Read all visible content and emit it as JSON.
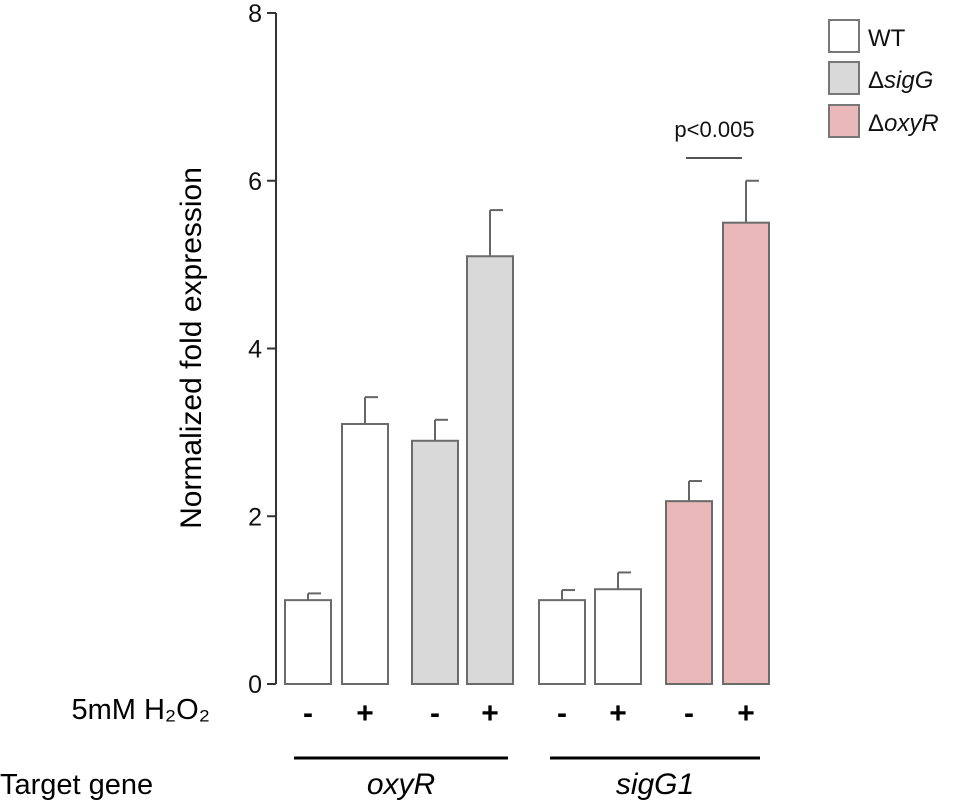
{
  "chart_data": {
    "type": "bar",
    "ylabel": "Normalized fold expression",
    "ylim": [
      0,
      8
    ],
    "yticks": [
      0,
      2,
      4,
      6,
      8
    ],
    "treatment_label": "5mM H₂O₂",
    "target_label": "Target gene",
    "bars": [
      {
        "strain": "WT",
        "treatment": "-",
        "gene": "oxyR",
        "value": 1.0,
        "error": 0.08
      },
      {
        "strain": "WT",
        "treatment": "+",
        "gene": "oxyR",
        "value": 3.1,
        "error": 0.32
      },
      {
        "strain": "ΔsigG",
        "treatment": "-",
        "gene": "oxyR",
        "value": 2.9,
        "error": 0.25
      },
      {
        "strain": "ΔsigG",
        "treatment": "+",
        "gene": "oxyR",
        "value": 5.1,
        "error": 0.55
      },
      {
        "strain": "WT",
        "treatment": "-",
        "gene": "sigG1",
        "value": 1.0,
        "error": 0.12
      },
      {
        "strain": "WT",
        "treatment": "+",
        "gene": "sigG1",
        "value": 1.13,
        "error": 0.2
      },
      {
        "strain": "ΔoxyR",
        "treatment": "-",
        "gene": "sigG1",
        "value": 2.18,
        "error": 0.24
      },
      {
        "strain": "ΔoxyR",
        "treatment": "+",
        "gene": "sigG1",
        "value": 5.5,
        "error": 0.5
      }
    ],
    "genes": [
      "oxyR",
      "sigG1"
    ],
    "legend": [
      {
        "delta": "",
        "name": "WT",
        "italic": false,
        "color": "#ffffff"
      },
      {
        "delta": "Δ",
        "name": "sigG",
        "italic": true,
        "color": "#d9d9d9"
      },
      {
        "delta": "Δ",
        "name": "oxyR",
        "italic": true,
        "color": "#ebb8b9"
      }
    ],
    "strain_colors": {
      "WT": "#ffffff",
      "ΔsigG": "#d9d9d9",
      "ΔoxyR": "#ebb8b9"
    },
    "annotation": {
      "text": "p<0.005",
      "between_bars": [
        6,
        7
      ]
    },
    "legend_position": "top-right"
  }
}
